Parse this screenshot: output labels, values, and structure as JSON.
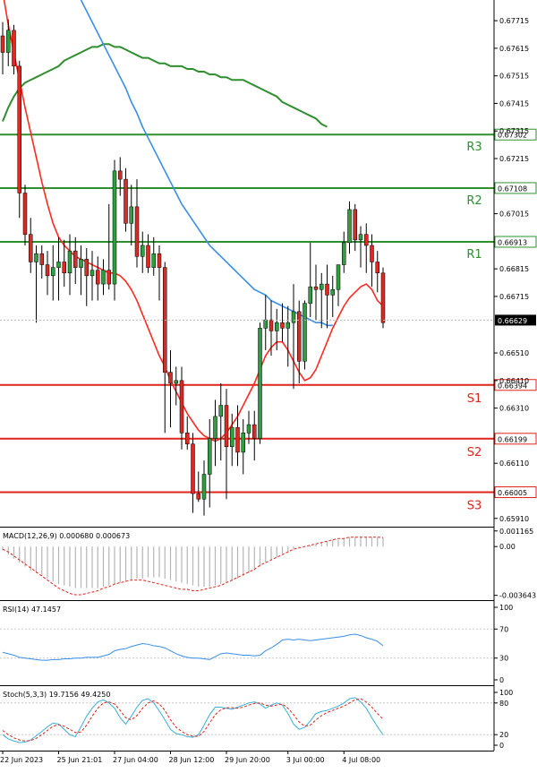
{
  "colors": {
    "bull": "#2e9e3e",
    "bear": "#d92b23",
    "ma_fast": "#ff2a1f",
    "ma_slow": "#3a8ee6",
    "ma_long": "#2f8f2f",
    "resistance": "#2f8f2f",
    "support": "#e0231b",
    "macd_signal": "#e0231b",
    "rsi_line": "#3a8ee6",
    "stoch_k": "#3ab0d8",
    "stoch_d": "#e0231b"
  },
  "chart_data": [
    {
      "type": "candlestick",
      "title": "",
      "ylim": [
        0.6588,
        0.6779
      ],
      "y_ticks": [
        "0.67715",
        "0.67615",
        "0.67515",
        "0.67415",
        "0.67315",
        "0.67215",
        "0.67015",
        "0.66815",
        "0.66715",
        "0.66510",
        "0.66410",
        "0.66310",
        "0.66110",
        "0.65910"
      ],
      "x_ticks": [
        "22 Jun 2023",
        "25 Jun 21:01",
        "27 Jun 04:00",
        "28 Jun 12:00",
        "29 Jun 20:00",
        "3 Jul 00:00",
        "4 Jul 08:00"
      ],
      "x_tick_bars": [
        0,
        10,
        20,
        30,
        40,
        51,
        61
      ],
      "levels": [
        {
          "name": "R3",
          "price_label": "0.67302",
          "value": 0.67302,
          "kind": "resistance"
        },
        {
          "name": "R2",
          "price_label": "0.67108",
          "value": 0.67108,
          "kind": "resistance"
        },
        {
          "name": "R1",
          "price_label": "0.66913",
          "value": 0.66913,
          "kind": "resistance"
        },
        {
          "name": "S1",
          "price_label": "0.66394",
          "value": 0.66394,
          "kind": "support"
        },
        {
          "name": "S2",
          "price_label": "0.66199",
          "value": 0.66199,
          "kind": "support"
        },
        {
          "name": "S3",
          "price_label": "0.66005",
          "value": 0.66005,
          "kind": "support"
        }
      ],
      "current_price_label": "0.66629",
      "current_price": 0.66629,
      "ohlc": [
        [
          0.6766,
          0.6771,
          0.6752,
          0.676
        ],
        [
          0.676,
          0.6772,
          0.6755,
          0.6768
        ],
        [
          0.6768,
          0.677,
          0.6752,
          0.6755
        ],
        [
          0.6755,
          0.6757,
          0.67,
          0.6709
        ],
        [
          0.6709,
          0.6712,
          0.669,
          0.6694
        ],
        [
          0.6694,
          0.67,
          0.668,
          0.6684
        ],
        [
          0.6684,
          0.669,
          0.6662,
          0.6687
        ],
        [
          0.6687,
          0.669,
          0.6678,
          0.6683
        ],
        [
          0.6683,
          0.6688,
          0.6672,
          0.6679
        ],
        [
          0.6679,
          0.669,
          0.667,
          0.6682
        ],
        [
          0.6682,
          0.6693,
          0.667,
          0.6684
        ],
        [
          0.6684,
          0.6692,
          0.6675,
          0.668
        ],
        [
          0.668,
          0.6694,
          0.6672,
          0.6688
        ],
        [
          0.6688,
          0.6693,
          0.6676,
          0.6682
        ],
        [
          0.6682,
          0.669,
          0.6672,
          0.6685
        ],
        [
          0.6685,
          0.6689,
          0.6668,
          0.6679
        ],
        [
          0.6679,
          0.6688,
          0.667,
          0.6681
        ],
        [
          0.6681,
          0.6686,
          0.667,
          0.6676
        ],
        [
          0.6676,
          0.6685,
          0.6672,
          0.6681
        ],
        [
          0.6681,
          0.6705,
          0.6674,
          0.6676
        ],
        [
          0.6676,
          0.6721,
          0.667,
          0.6717
        ],
        [
          0.6717,
          0.6722,
          0.6708,
          0.6714
        ],
        [
          0.6714,
          0.6718,
          0.6695,
          0.6698
        ],
        [
          0.6698,
          0.6712,
          0.669,
          0.6704
        ],
        [
          0.6704,
          0.6714,
          0.6682,
          0.6686
        ],
        [
          0.6686,
          0.6695,
          0.668,
          0.669
        ],
        [
          0.669,
          0.6694,
          0.668,
          0.6682
        ],
        [
          0.6682,
          0.6693,
          0.6679,
          0.6687
        ],
        [
          0.6687,
          0.669,
          0.667,
          0.6682
        ],
        [
          0.6682,
          0.6684,
          0.6622,
          0.6644
        ],
        [
          0.6644,
          0.6652,
          0.6624,
          0.664
        ],
        [
          0.664,
          0.6646,
          0.6632,
          0.6641
        ],
        [
          0.6641,
          0.6646,
          0.6616,
          0.6622
        ],
        [
          0.6622,
          0.6628,
          0.6616,
          0.6618
        ],
        [
          0.6618,
          0.6622,
          0.6593,
          0.66
        ],
        [
          0.66,
          0.6608,
          0.6597,
          0.6598
        ],
        [
          0.6598,
          0.6612,
          0.6592,
          0.6607
        ],
        [
          0.6607,
          0.6627,
          0.6595,
          0.662
        ],
        [
          0.662,
          0.6634,
          0.661,
          0.6628
        ],
        [
          0.6628,
          0.664,
          0.6612,
          0.6632
        ],
        [
          0.6632,
          0.6638,
          0.6598,
          0.6617
        ],
        [
          0.6617,
          0.6629,
          0.661,
          0.6624
        ],
        [
          0.6624,
          0.6632,
          0.661,
          0.6615
        ],
        [
          0.6615,
          0.6627,
          0.6607,
          0.6622
        ],
        [
          0.6622,
          0.663,
          0.6618,
          0.6625
        ],
        [
          0.6625,
          0.663,
          0.6612,
          0.662
        ],
        [
          0.662,
          0.6662,
          0.6618,
          0.666
        ],
        [
          0.666,
          0.6672,
          0.6652,
          0.6663
        ],
        [
          0.6663,
          0.667,
          0.665,
          0.6659
        ],
        [
          0.6659,
          0.6667,
          0.6652,
          0.6662
        ],
        [
          0.6662,
          0.6669,
          0.6655,
          0.666
        ],
        [
          0.666,
          0.6668,
          0.6646,
          0.6662
        ],
        [
          0.6662,
          0.6676,
          0.6638,
          0.6666
        ],
        [
          0.6666,
          0.667,
          0.664,
          0.6648
        ],
        [
          0.6648,
          0.667,
          0.6645,
          0.6669
        ],
        [
          0.6669,
          0.6691,
          0.6664,
          0.6675
        ],
        [
          0.6675,
          0.6683,
          0.6663,
          0.6674
        ],
        [
          0.6674,
          0.668,
          0.666,
          0.6676
        ],
        [
          0.6676,
          0.6683,
          0.666,
          0.6672
        ],
        [
          0.6672,
          0.6679,
          0.6664,
          0.6674
        ],
        [
          0.6674,
          0.6683,
          0.6668,
          0.6683
        ],
        [
          0.6683,
          0.6695,
          0.668,
          0.6691
        ],
        [
          0.6691,
          0.6706,
          0.6687,
          0.6703
        ],
        [
          0.6703,
          0.6705,
          0.6688,
          0.6692
        ],
        [
          0.6692,
          0.6697,
          0.6682,
          0.6694
        ],
        [
          0.6694,
          0.6698,
          0.668,
          0.669
        ],
        [
          0.669,
          0.6694,
          0.6675,
          0.6684
        ],
        [
          0.6684,
          0.6688,
          0.6673,
          0.668
        ],
        [
          0.668,
          0.6682,
          0.666,
          0.6662
        ]
      ],
      "ma_fast": [
        0.6782,
        0.677,
        0.676,
        0.675,
        0.674,
        0.6731,
        0.6722,
        0.6713,
        0.6705,
        0.6698,
        0.6693,
        0.669,
        0.6688,
        0.6686,
        0.6685,
        0.6684,
        0.6683,
        0.6682,
        0.6681,
        0.668,
        0.668,
        0.6679,
        0.6677,
        0.6674,
        0.667,
        0.6665,
        0.666,
        0.6655,
        0.665,
        0.6646,
        0.6641,
        0.6637,
        0.6633,
        0.6629,
        0.6626,
        0.6623,
        0.6621,
        0.662,
        0.6619,
        0.662,
        0.6622,
        0.6625,
        0.6628,
        0.6632,
        0.6636,
        0.664,
        0.6645,
        0.665,
        0.6653,
        0.6655,
        0.6655,
        0.6652,
        0.6648,
        0.6644,
        0.6641,
        0.6642,
        0.6645,
        0.665,
        0.6655,
        0.666,
        0.6664,
        0.6668,
        0.6671,
        0.6673,
        0.6675,
        0.6676,
        0.6674,
        0.667,
        0.6668
      ],
      "ma_slow": [
        null,
        null,
        null,
        null,
        null,
        null,
        null,
        null,
        null,
        null,
        null,
        null,
        null,
        null,
        0.6779,
        0.6775,
        0.6771,
        0.6767,
        0.6763,
        0.6759,
        0.6755,
        0.6751,
        0.6747,
        0.6742,
        0.6738,
        0.6733,
        0.6729,
        0.6725,
        0.6721,
        0.6717,
        0.6713,
        0.6709,
        0.6705,
        0.6702,
        0.6699,
        0.6696,
        0.6693,
        0.669,
        0.6688,
        0.6686,
        0.6684,
        0.6682,
        0.668,
        0.6678,
        0.6676,
        0.6674,
        0.6673,
        0.6672,
        0.667,
        0.6669,
        0.6668,
        0.6667,
        0.6666,
        0.6665,
        0.6664,
        0.6663,
        0.6662,
        0.6662,
        0.6661,
        0.6661
      ],
      "ma_long": [
        0.6735,
        0.674,
        0.6744,
        0.6747,
        0.6749,
        0.675,
        0.6751,
        0.6752,
        0.6753,
        0.6754,
        0.6755,
        0.6757,
        0.6758,
        0.6759,
        0.676,
        0.6761,
        0.6762,
        0.6762,
        0.6763,
        0.6763,
        0.6762,
        0.6762,
        0.6761,
        0.676,
        0.6759,
        0.6758,
        0.6758,
        0.6757,
        0.6756,
        0.6756,
        0.6755,
        0.6755,
        0.6755,
        0.6754,
        0.6754,
        0.6753,
        0.6753,
        0.6752,
        0.6752,
        0.6751,
        0.6751,
        0.675,
        0.675,
        0.675,
        0.6749,
        0.6748,
        0.6747,
        0.6746,
        0.6745,
        0.6744,
        0.6742,
        0.6741,
        0.674,
        0.6739,
        0.6738,
        0.6737,
        0.6736,
        0.6734,
        0.6733
      ]
    },
    {
      "type": "bar",
      "name": "MACD",
      "label": "MACD(12,26,9) 0.000680 0.000673",
      "ylim": [
        -0.004,
        0.00135
      ],
      "y_ticks": [
        {
          "label": "0.001165",
          "value": 0.001165
        },
        {
          "label": "0.00",
          "value": 0.0
        },
        {
          "label": "-0.003643",
          "value": -0.003643
        }
      ],
      "histogram": [
        -0.0003,
        -0.0006,
        -0.0009,
        -0.0012,
        -0.0015,
        -0.0018,
        -0.002,
        -0.0022,
        -0.0024,
        -0.0026,
        -0.0028,
        -0.0029,
        -0.003,
        -0.0031,
        -0.0031,
        -0.0031,
        -0.0031,
        -0.0031,
        -0.003,
        -0.0029,
        -0.0028,
        -0.0027,
        -0.0026,
        -0.0025,
        -0.0024,
        -0.0024,
        -0.0023,
        -0.0023,
        -0.0023,
        -0.0024,
        -0.0025,
        -0.0026,
        -0.0027,
        -0.0028,
        -0.0029,
        -0.003,
        -0.003,
        -0.003,
        -0.0029,
        -0.0028,
        -0.0027,
        -0.0026,
        -0.0024,
        -0.0022,
        -0.002,
        -0.0018,
        -0.0015,
        -0.0012,
        -0.001,
        -0.0008,
        -0.0006,
        -0.0004,
        -0.0002,
        -0.0001,
        0.0,
        0.0001,
        0.0002,
        0.0003,
        0.0004,
        0.0005,
        0.0005,
        0.0006,
        0.0007,
        0.0007,
        0.0007,
        0.0007,
        0.0007,
        0.0007,
        0.00068
      ],
      "signal": [
        -0.0002,
        -0.0004,
        -0.0007,
        -0.001,
        -0.0013,
        -0.0016,
        -0.0019,
        -0.0022,
        -0.0025,
        -0.0028,
        -0.0031,
        -0.0033,
        -0.0035,
        -0.0036,
        -0.0036,
        -0.0035,
        -0.0034,
        -0.0033,
        -0.0031,
        -0.003,
        -0.0028,
        -0.0027,
        -0.0026,
        -0.0025,
        -0.0025,
        -0.0025,
        -0.0026,
        -0.0027,
        -0.0028,
        -0.0029,
        -0.003,
        -0.0031,
        -0.0032,
        -0.0032,
        -0.0033,
        -0.0033,
        -0.0032,
        -0.0031,
        -0.003,
        -0.0029,
        -0.0027,
        -0.0025,
        -0.0023,
        -0.0021,
        -0.0019,
        -0.0017,
        -0.0014,
        -0.0012,
        -0.001,
        -0.0008,
        -0.0006,
        -0.0004,
        -0.0002,
        -0.0001,
        0.0,
        0.0001,
        0.0002,
        0.0003,
        0.0004,
        0.0005,
        0.0006,
        0.0006,
        0.0007,
        0.0007,
        0.0007,
        0.0007,
        0.0007,
        0.0007,
        0.000673
      ]
    },
    {
      "type": "line",
      "name": "RSI",
      "label": "RSI(14) 47.1457",
      "ylim": [
        0,
        100
      ],
      "y_ticks": [
        {
          "label": "100",
          "value": 100
        },
        {
          "label": "70",
          "value": 70
        },
        {
          "label": "30",
          "value": 30
        },
        {
          "label": "0",
          "value": 0
        }
      ],
      "values": [
        38,
        36,
        34,
        31,
        30,
        29,
        28,
        27,
        27,
        28,
        28,
        29,
        29,
        30,
        30,
        31,
        31,
        31,
        33,
        35,
        40,
        42,
        43,
        46,
        48,
        50,
        49,
        47,
        46,
        44,
        40,
        36,
        33,
        31,
        30,
        30,
        29,
        28,
        32,
        36,
        37,
        36,
        35,
        34,
        34,
        33,
        34,
        40,
        44,
        49,
        55,
        56,
        55,
        56,
        55,
        54,
        55,
        56,
        57,
        58,
        59,
        60,
        62,
        63,
        61,
        58,
        56,
        53,
        47.1
      ]
    },
    {
      "type": "line",
      "name": "Stoch",
      "label": "Stoch(5,3,3) 19.7156 49.4250",
      "ylim": [
        0,
        100
      ],
      "y_ticks": [
        {
          "label": "100",
          "value": 100
        },
        {
          "label": "80",
          "value": 80
        },
        {
          "label": "20",
          "value": 20
        },
        {
          "label": "0",
          "value": 0
        }
      ],
      "k": [
        20,
        12,
        8,
        5,
        6,
        10,
        18,
        26,
        35,
        42,
        40,
        30,
        20,
        16,
        35,
        55,
        70,
        82,
        86,
        80,
        70,
        52,
        40,
        55,
        72,
        85,
        88,
        80,
        65,
        48,
        30,
        22,
        20,
        16,
        15,
        20,
        38,
        58,
        72,
        72,
        70,
        68,
        72,
        76,
        80,
        82,
        78,
        70,
        76,
        80,
        76,
        60,
        40,
        30,
        34,
        46,
        60,
        64,
        66,
        70,
        74,
        80,
        88,
        90,
        82,
        70,
        52,
        35,
        19.7
      ],
      "d": [
        28,
        20,
        14,
        10,
        8,
        9,
        13,
        20,
        28,
        36,
        39,
        36,
        30,
        24,
        25,
        38,
        55,
        70,
        80,
        82,
        78,
        66,
        52,
        48,
        56,
        70,
        80,
        84,
        78,
        66,
        48,
        34,
        26,
        20,
        17,
        17,
        26,
        42,
        58,
        67,
        71,
        71,
        70,
        72,
        76,
        79,
        80,
        76,
        74,
        76,
        78,
        70,
        58,
        44,
        36,
        38,
        48,
        56,
        62,
        66,
        70,
        74,
        80,
        86,
        88,
        82,
        72,
        60,
        49.4
      ]
    }
  ]
}
